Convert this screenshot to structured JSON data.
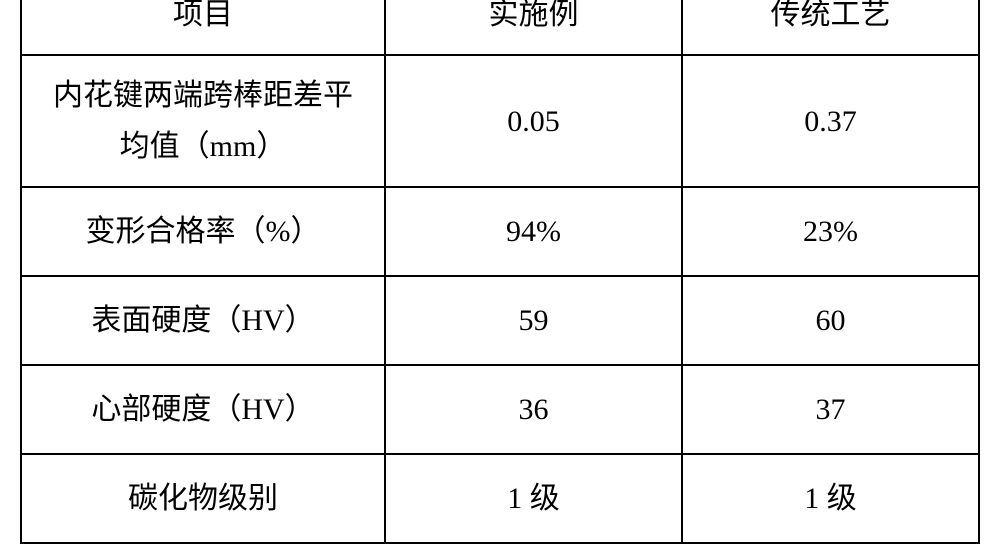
{
  "table": {
    "columns": [
      {
        "label": "项目"
      },
      {
        "label": "实施例"
      },
      {
        "label": "传统工艺"
      }
    ],
    "rows": [
      {
        "label_line1": "内花键两端跨棒距差平",
        "label_line2": "均值（mm）",
        "col2": "0.05",
        "col3": "0.37"
      },
      {
        "label": "变形合格率（%）",
        "col2": "94%",
        "col3": "23%"
      },
      {
        "label": "表面硬度（HV）",
        "col2": "59",
        "col3": "60"
      },
      {
        "label": "心部硬度（HV）",
        "col2": "36",
        "col3": "37"
      },
      {
        "label": "碳化物级别",
        "col2": "1 级",
        "col3": "1 级"
      }
    ],
    "styling": {
      "border_color": "#000000",
      "border_width": 2,
      "background_color": "#ffffff",
      "text_color": "#000000",
      "font_size": 30,
      "font_family": "SimSun",
      "col_widths": [
        "38%",
        "31%",
        "31%"
      ],
      "text_align": "center",
      "vertical_align": "middle"
    }
  }
}
